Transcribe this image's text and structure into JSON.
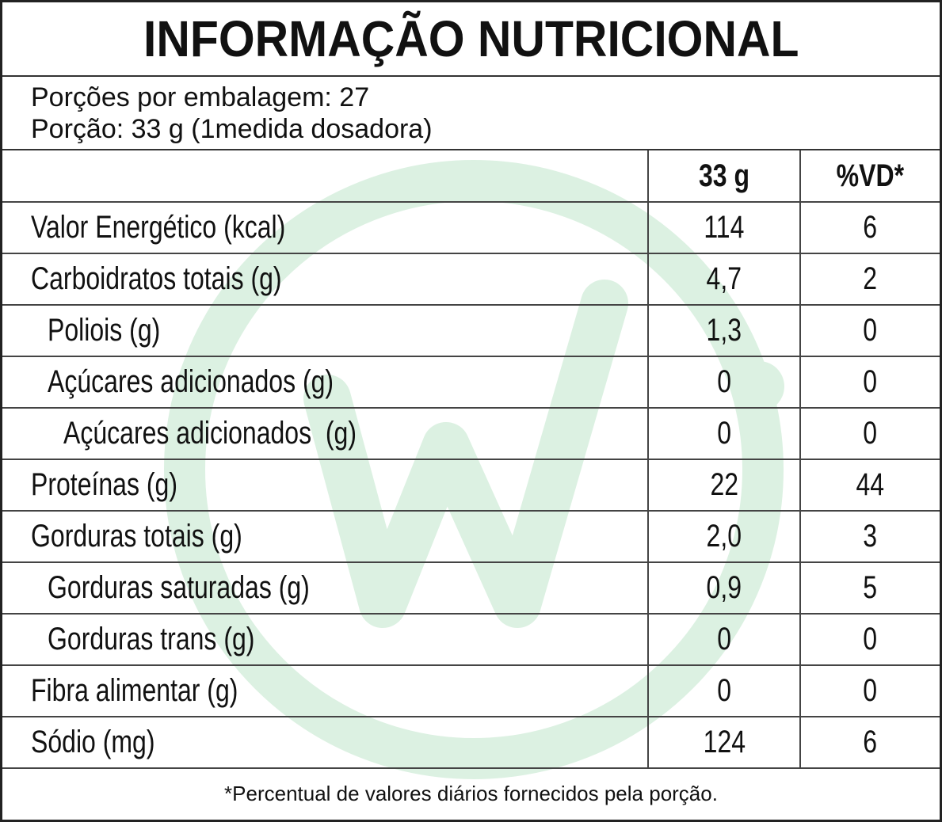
{
  "title": "INFORMAÇÃO NUTRICIONAL",
  "serving": {
    "per_package": "Porções por embalagem: 27",
    "portion": "Porção: 33 g (1medida dosadora)"
  },
  "table": {
    "headers": [
      "33 g",
      "%VD*"
    ],
    "rows": [
      [
        "Valor Energético (kcal)",
        "114",
        "6"
      ],
      [
        "Carboidratos totais (g)",
        "4,7",
        "2"
      ],
      [
        "Poliois (g)",
        "1,3",
        "0"
      ],
      [
        "Açúcares adicionados (g)",
        "0",
        "0"
      ],
      [
        "Açúcares adicionados  (g)",
        "0",
        "0"
      ],
      [
        "Proteínas (g)",
        "22",
        "44"
      ],
      [
        "Gorduras totais (g)",
        "2,0",
        "3"
      ],
      [
        "Gorduras saturadas (g)",
        "0,9",
        "5"
      ],
      [
        "Gorduras trans (g)",
        "0",
        "0"
      ],
      [
        "Fibra alimentar (g)",
        "0",
        "0"
      ],
      [
        "Sódio (mg)",
        "124",
        "6"
      ]
    ]
  },
  "footnote": "*Percentual de valores diários fornecidos pela porção."
}
